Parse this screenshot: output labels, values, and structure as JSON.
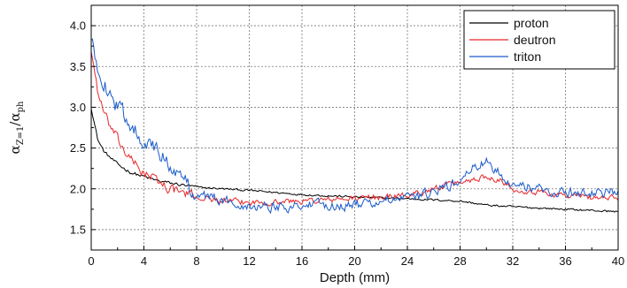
{
  "chart_data": {
    "type": "line",
    "xlabel": "Depth (mm)",
    "ylabel": {
      "symbol_num": "α",
      "sub_num": "Z=1",
      "slash": "/",
      "symbol_den": "α",
      "sub_den": "ph"
    },
    "xlim": [
      0,
      40
    ],
    "ylim": [
      1.25,
      4.25
    ],
    "x_ticks": [
      "0",
      "4",
      "8",
      "12",
      "16",
      "20",
      "24",
      "28",
      "32",
      "36",
      "40"
    ],
    "y_ticks": [
      "1.5",
      "2.0",
      "2.5",
      "3.0",
      "3.5",
      "4.0"
    ],
    "grid": true,
    "legend_position": "top-right",
    "series": [
      {
        "name": "proton",
        "color": "#000000",
        "noise": 0.02,
        "points": [
          [
            0,
            3.0
          ],
          [
            0.5,
            2.6
          ],
          [
            1,
            2.45
          ],
          [
            2,
            2.3
          ],
          [
            3,
            2.2
          ],
          [
            4,
            2.15
          ],
          [
            5,
            2.1
          ],
          [
            6,
            2.07
          ],
          [
            8,
            2.02
          ],
          [
            12,
            1.98
          ],
          [
            16,
            1.93
          ],
          [
            20,
            1.9
          ],
          [
            24,
            1.88
          ],
          [
            28,
            1.85
          ],
          [
            30,
            1.8
          ],
          [
            32,
            1.78
          ],
          [
            36,
            1.75
          ],
          [
            40,
            1.72
          ]
        ]
      },
      {
        "name": "deutron",
        "color": "#e8262a",
        "noise": 0.06,
        "points": [
          [
            0,
            3.7
          ],
          [
            0.5,
            3.2
          ],
          [
            1,
            2.9
          ],
          [
            2,
            2.6
          ],
          [
            3,
            2.35
          ],
          [
            4,
            2.2
          ],
          [
            5,
            2.1
          ],
          [
            6,
            2.0
          ],
          [
            8,
            1.9
          ],
          [
            10,
            1.85
          ],
          [
            12,
            1.83
          ],
          [
            16,
            1.85
          ],
          [
            20,
            1.88
          ],
          [
            24,
            1.92
          ],
          [
            26,
            2.0
          ],
          [
            28,
            2.08
          ],
          [
            30,
            2.15
          ],
          [
            31,
            2.12
          ],
          [
            32,
            2.0
          ],
          [
            36,
            1.92
          ],
          [
            40,
            1.88
          ]
        ]
      },
      {
        "name": "triton",
        "color": "#1a5bc9",
        "noise": 0.1,
        "points": [
          [
            0,
            3.8
          ],
          [
            0.5,
            3.5
          ],
          [
            1,
            3.3
          ],
          [
            2,
            3.0
          ],
          [
            3,
            2.8
          ],
          [
            4,
            2.6
          ],
          [
            5,
            2.45
          ],
          [
            6,
            2.3
          ],
          [
            7,
            2.1
          ],
          [
            8,
            1.95
          ],
          [
            10,
            1.85
          ],
          [
            12,
            1.8
          ],
          [
            14,
            1.78
          ],
          [
            16,
            1.8
          ],
          [
            20,
            1.8
          ],
          [
            24,
            1.88
          ],
          [
            26,
            1.95
          ],
          [
            28,
            2.1
          ],
          [
            29,
            2.25
          ],
          [
            30,
            2.32
          ],
          [
            31,
            2.2
          ],
          [
            32,
            2.05
          ],
          [
            36,
            1.95
          ],
          [
            40,
            1.95
          ]
        ]
      }
    ]
  }
}
